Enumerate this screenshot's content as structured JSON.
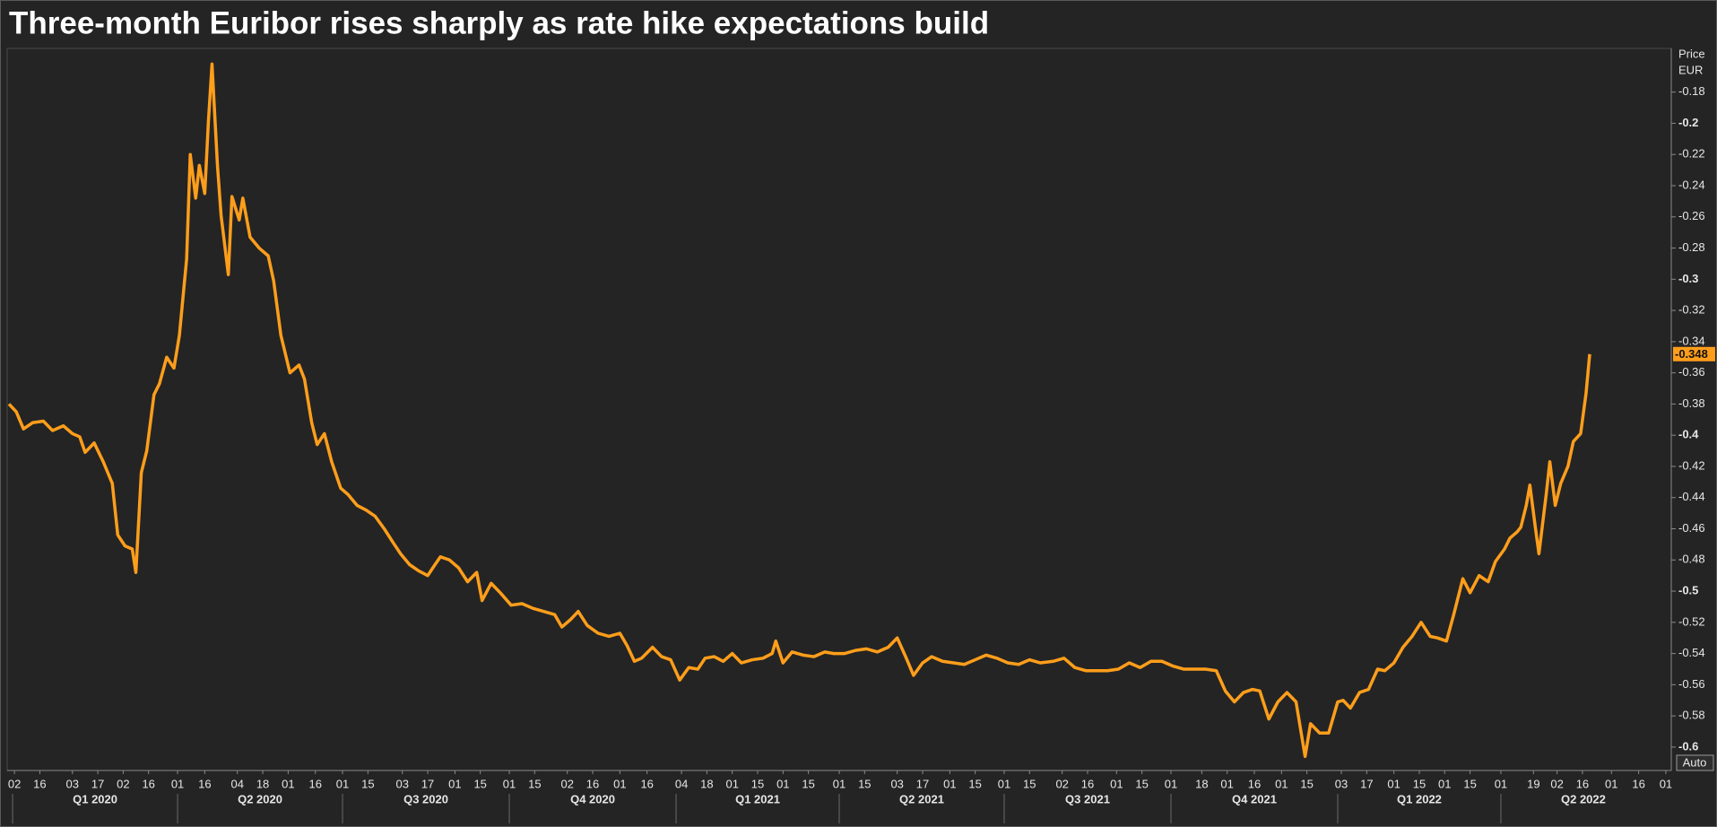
{
  "chart_data": {
    "type": "line",
    "title": "Three-month Euribor rises sharply as rate hike expectations build",
    "y_label_lines": [
      "Price",
      "EUR"
    ],
    "scale_button": "Auto",
    "grid": false,
    "xlim": [
      "2019-12-29",
      "2022-07-04"
    ],
    "ylim": [
      -0.615,
      -0.152
    ],
    "yticks": [
      -0.18,
      -0.2,
      -0.22,
      -0.24,
      -0.26,
      -0.28,
      -0.3,
      -0.32,
      -0.34,
      -0.36,
      -0.38,
      -0.4,
      -0.42,
      -0.44,
      -0.46,
      -0.48,
      -0.5,
      -0.52,
      -0.54,
      -0.56,
      -0.58,
      -0.6
    ],
    "xticks": [
      {
        "value": "2020-01-02",
        "label": "02"
      },
      {
        "value": "2020-01-16",
        "label": "16"
      },
      {
        "value": "2020-02-03",
        "label": "03"
      },
      {
        "value": "2020-02-17",
        "label": "17"
      },
      {
        "value": "2020-03-02",
        "label": "02"
      },
      {
        "value": "2020-03-16",
        "label": "16"
      },
      {
        "value": "2020-04-01",
        "label": "01"
      },
      {
        "value": "2020-04-16",
        "label": "16"
      },
      {
        "value": "2020-05-04",
        "label": "04"
      },
      {
        "value": "2020-05-18",
        "label": "18"
      },
      {
        "value": "2020-06-01",
        "label": "01"
      },
      {
        "value": "2020-06-16",
        "label": "16"
      },
      {
        "value": "2020-07-01",
        "label": "01"
      },
      {
        "value": "2020-07-15",
        "label": "15"
      },
      {
        "value": "2020-08-03",
        "label": "03"
      },
      {
        "value": "2020-08-17",
        "label": "17"
      },
      {
        "value": "2020-09-01",
        "label": "01"
      },
      {
        "value": "2020-09-15",
        "label": "15"
      },
      {
        "value": "2020-10-01",
        "label": "01"
      },
      {
        "value": "2020-10-15",
        "label": "15"
      },
      {
        "value": "2020-11-02",
        "label": "02"
      },
      {
        "value": "2020-11-16",
        "label": "16"
      },
      {
        "value": "2020-12-01",
        "label": "01"
      },
      {
        "value": "2020-12-16",
        "label": "16"
      },
      {
        "value": "2021-01-04",
        "label": "04"
      },
      {
        "value": "2021-01-18",
        "label": "18"
      },
      {
        "value": "2021-02-01",
        "label": "01"
      },
      {
        "value": "2021-02-15",
        "label": "15"
      },
      {
        "value": "2021-03-01",
        "label": "01"
      },
      {
        "value": "2021-03-15",
        "label": "15"
      },
      {
        "value": "2021-04-01",
        "label": "01"
      },
      {
        "value": "2021-04-15",
        "label": "15"
      },
      {
        "value": "2021-05-03",
        "label": "03"
      },
      {
        "value": "2021-05-17",
        "label": "17"
      },
      {
        "value": "2021-06-01",
        "label": "01"
      },
      {
        "value": "2021-06-15",
        "label": "15"
      },
      {
        "value": "2021-07-01",
        "label": "01"
      },
      {
        "value": "2021-07-15",
        "label": "15"
      },
      {
        "value": "2021-08-02",
        "label": "02"
      },
      {
        "value": "2021-08-16",
        "label": "16"
      },
      {
        "value": "2021-09-01",
        "label": "01"
      },
      {
        "value": "2021-09-15",
        "label": "15"
      },
      {
        "value": "2021-10-01",
        "label": "01"
      },
      {
        "value": "2021-10-18",
        "label": "18"
      },
      {
        "value": "2021-11-01",
        "label": "01"
      },
      {
        "value": "2021-11-16",
        "label": "16"
      },
      {
        "value": "2021-12-01",
        "label": "01"
      },
      {
        "value": "2021-12-15",
        "label": "15"
      },
      {
        "value": "2022-01-03",
        "label": "03"
      },
      {
        "value": "2022-01-17",
        "label": "17"
      },
      {
        "value": "2022-02-01",
        "label": "01"
      },
      {
        "value": "2022-02-15",
        "label": "15"
      },
      {
        "value": "2022-03-01",
        "label": "01"
      },
      {
        "value": "2022-03-15",
        "label": "15"
      },
      {
        "value": "2022-04-01",
        "label": "01"
      },
      {
        "value": "2022-04-19",
        "label": "19"
      },
      {
        "value": "2022-05-02",
        "label": "02"
      },
      {
        "value": "2022-05-16",
        "label": "16"
      },
      {
        "value": "2022-06-01",
        "label": "01"
      },
      {
        "value": "2022-06-16",
        "label": "16"
      },
      {
        "value": "2022-07-01",
        "label": "01"
      }
    ],
    "quarters": [
      {
        "value": "2020-01-01",
        "label": "Q1 2020"
      },
      {
        "value": "2020-04-01",
        "label": "Q2 2020"
      },
      {
        "value": "2020-07-01",
        "label": "Q3 2020"
      },
      {
        "value": "2020-10-01",
        "label": "Q4 2020"
      },
      {
        "value": "2021-01-01",
        "label": "Q1 2021"
      },
      {
        "value": "2021-04-01",
        "label": "Q2 2021"
      },
      {
        "value": "2021-07-01",
        "label": "Q3 2021"
      },
      {
        "value": "2021-10-01",
        "label": "Q4 2021"
      },
      {
        "value": "2022-01-01",
        "label": "Q1 2022"
      },
      {
        "value": "2022-04-01",
        "label": "Q2 2022"
      }
    ],
    "last_value": -0.348,
    "x": [
      "2019-12-30",
      "2020-01-03",
      "2020-01-07",
      "2020-01-12",
      "2020-01-18",
      "2020-01-23",
      "2020-01-29",
      "2020-02-03",
      "2020-02-07",
      "2020-02-10",
      "2020-02-15",
      "2020-02-20",
      "2020-02-25",
      "2020-02-28",
      "2020-03-03",
      "2020-03-07",
      "2020-03-09",
      "2020-03-12",
      "2020-03-15",
      "2020-03-19",
      "2020-03-22",
      "2020-03-26",
      "2020-03-30",
      "2020-04-02",
      "2020-04-06",
      "2020-04-08",
      "2020-04-11",
      "2020-04-13",
      "2020-04-16",
      "2020-04-18",
      "2020-04-20",
      "2020-04-23",
      "2020-04-25",
      "2020-04-29",
      "2020-05-01",
      "2020-05-05",
      "2020-05-07",
      "2020-05-11",
      "2020-05-16",
      "2020-05-21",
      "2020-05-24",
      "2020-05-28",
      "2020-06-02",
      "2020-06-07",
      "2020-06-10",
      "2020-06-14",
      "2020-06-17",
      "2020-06-21",
      "2020-06-25",
      "2020-06-30",
      "2020-07-04",
      "2020-07-09",
      "2020-07-14",
      "2020-07-19",
      "2020-07-24",
      "2020-07-29",
      "2020-08-02",
      "2020-08-07",
      "2020-08-12",
      "2020-08-17",
      "2020-08-21",
      "2020-08-24",
      "2020-08-29",
      "2020-09-03",
      "2020-09-08",
      "2020-09-13",
      "2020-09-16",
      "2020-09-21",
      "2020-09-26",
      "2020-10-02",
      "2020-10-08",
      "2020-10-14",
      "2020-10-20",
      "2020-10-26",
      "2020-10-30",
      "2020-11-04",
      "2020-11-08",
      "2020-11-13",
      "2020-11-19",
      "2020-11-25",
      "2020-12-01",
      "2020-12-05",
      "2020-12-09",
      "2020-12-13",
      "2020-12-19",
      "2020-12-24",
      "2020-12-29",
      "2021-01-03",
      "2021-01-08",
      "2021-01-13",
      "2021-01-17",
      "2021-01-22",
      "2021-01-27",
      "2021-02-01",
      "2021-02-06",
      "2021-02-12",
      "2021-02-18",
      "2021-02-23",
      "2021-02-25",
      "2021-03-01",
      "2021-03-06",
      "2021-03-12",
      "2021-03-18",
      "2021-03-24",
      "2021-03-29",
      "2021-04-04",
      "2021-04-10",
      "2021-04-16",
      "2021-04-22",
      "2021-04-28",
      "2021-05-03",
      "2021-05-08",
      "2021-05-12",
      "2021-05-17",
      "2021-05-22",
      "2021-05-28",
      "2021-06-03",
      "2021-06-09",
      "2021-06-15",
      "2021-06-21",
      "2021-06-27",
      "2021-07-03",
      "2021-07-09",
      "2021-07-15",
      "2021-07-21",
      "2021-07-28",
      "2021-08-03",
      "2021-08-09",
      "2021-08-15",
      "2021-08-21",
      "2021-08-27",
      "2021-09-02",
      "2021-09-08",
      "2021-09-14",
      "2021-09-20",
      "2021-09-26",
      "2021-10-02",
      "2021-10-08",
      "2021-10-14",
      "2021-10-20",
      "2021-10-26",
      "2021-10-31",
      "2021-11-05",
      "2021-11-10",
      "2021-11-15",
      "2021-11-19",
      "2021-11-24",
      "2021-11-29",
      "2021-12-04",
      "2021-12-09",
      "2021-12-14",
      "2021-12-17",
      "2021-12-22",
      "2021-12-27",
      "2022-01-01",
      "2022-01-04",
      "2022-01-08",
      "2022-01-13",
      "2022-01-18",
      "2022-01-23",
      "2022-01-27",
      "2022-02-01",
      "2022-02-06",
      "2022-02-11",
      "2022-02-16",
      "2022-02-21",
      "2022-02-25",
      "2022-03-02",
      "2022-03-06",
      "2022-03-11",
      "2022-03-15",
      "2022-03-20",
      "2022-03-25",
      "2022-03-29",
      "2022-04-03",
      "2022-04-06",
      "2022-04-10",
      "2022-04-12",
      "2022-04-15",
      "2022-04-17",
      "2022-04-20",
      "2022-04-22",
      "2022-04-26",
      "2022-04-28",
      "2022-05-01",
      "2022-05-04",
      "2022-05-08",
      "2022-05-11",
      "2022-05-15",
      "2022-05-18",
      "2022-05-20"
    ],
    "series": [
      {
        "name": "Three-month Euribor",
        "color": "#ff9e1b",
        "values": [
          -0.38,
          -0.385,
          -0.396,
          -0.392,
          -0.391,
          -0.397,
          -0.394,
          -0.399,
          -0.401,
          -0.411,
          -0.405,
          -0.417,
          -0.431,
          -0.464,
          -0.471,
          -0.473,
          -0.488,
          -0.424,
          -0.41,
          -0.374,
          -0.367,
          -0.35,
          -0.357,
          -0.336,
          -0.287,
          -0.22,
          -0.248,
          -0.227,
          -0.245,
          -0.199,
          -0.162,
          -0.227,
          -0.259,
          -0.297,
          -0.247,
          -0.262,
          -0.248,
          -0.273,
          -0.28,
          -0.285,
          -0.301,
          -0.336,
          -0.36,
          -0.355,
          -0.364,
          -0.392,
          -0.406,
          -0.399,
          -0.417,
          -0.434,
          -0.438,
          -0.445,
          -0.448,
          -0.452,
          -0.46,
          -0.469,
          -0.476,
          -0.483,
          -0.487,
          -0.49,
          -0.483,
          -0.478,
          -0.48,
          -0.485,
          -0.494,
          -0.488,
          -0.506,
          -0.495,
          -0.501,
          -0.509,
          -0.508,
          -0.511,
          -0.513,
          -0.515,
          -0.523,
          -0.518,
          -0.513,
          -0.522,
          -0.527,
          -0.529,
          -0.527,
          -0.535,
          -0.545,
          -0.543,
          -0.536,
          -0.542,
          -0.544,
          -0.557,
          -0.549,
          -0.55,
          -0.543,
          -0.542,
          -0.545,
          -0.54,
          -0.546,
          -0.544,
          -0.543,
          -0.54,
          -0.532,
          -0.546,
          -0.539,
          -0.541,
          -0.542,
          -0.539,
          -0.54,
          -0.54,
          -0.538,
          -0.537,
          -0.539,
          -0.536,
          -0.53,
          -0.543,
          -0.554,
          -0.546,
          -0.542,
          -0.545,
          -0.546,
          -0.547,
          -0.544,
          -0.541,
          -0.543,
          -0.546,
          -0.547,
          -0.544,
          -0.546,
          -0.545,
          -0.543,
          -0.549,
          -0.551,
          -0.551,
          -0.551,
          -0.55,
          -0.546,
          -0.549,
          -0.545,
          -0.545,
          -0.548,
          -0.55,
          -0.55,
          -0.55,
          -0.551,
          -0.564,
          -0.571,
          -0.565,
          -0.563,
          -0.564,
          -0.582,
          -0.571,
          -0.565,
          -0.571,
          -0.606,
          -0.585,
          -0.591,
          -0.591,
          -0.571,
          -0.57,
          -0.575,
          -0.565,
          -0.563,
          -0.55,
          -0.551,
          -0.546,
          -0.536,
          -0.529,
          -0.52,
          -0.529,
          -0.53,
          -0.532,
          -0.515,
          -0.492,
          -0.501,
          -0.49,
          -0.494,
          -0.481,
          -0.473,
          -0.466,
          -0.462,
          -0.459,
          -0.445,
          -0.432,
          -0.459,
          -0.476,
          -0.438,
          -0.417,
          -0.445,
          -0.431,
          -0.42,
          -0.404,
          -0.399,
          -0.373,
          -0.348
        ]
      }
    ]
  }
}
